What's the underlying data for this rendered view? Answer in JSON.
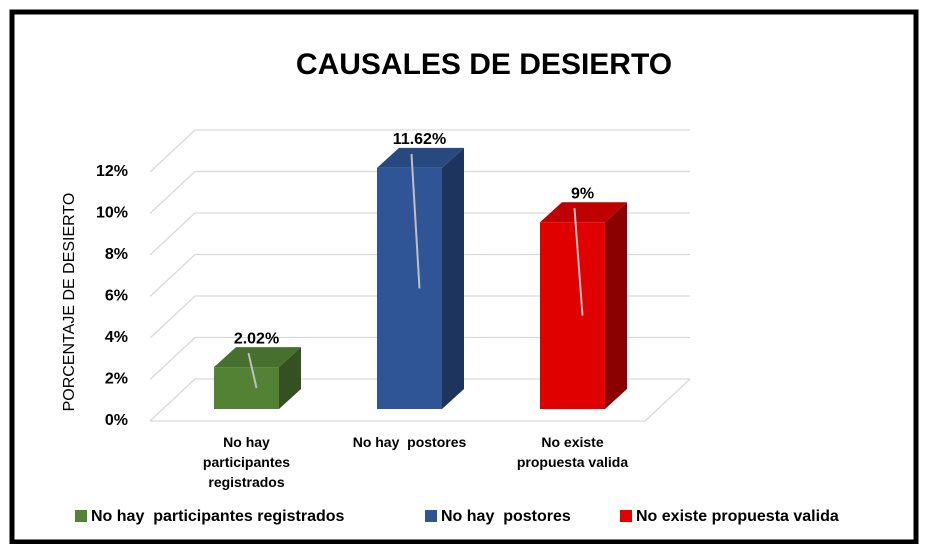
{
  "chart_data": {
    "type": "bar3d",
    "title": "CAUSALES DE DESIERTO",
    "y_label": "PORCENTAJE DE DESIERTO",
    "categories": [
      "No hay participantes registrados",
      "No hay  postores",
      "No existe propuesta valida"
    ],
    "series": [
      {
        "name": "No hay  participantes registrados",
        "color": "#548235",
        "values": [
          2.02,
          null,
          null
        ],
        "value_labels": [
          "2.02%",
          null,
          null
        ]
      },
      {
        "name": "No hay  postores",
        "color": "#2f5597",
        "values": [
          null,
          11.62,
          null
        ],
        "value_labels": [
          null,
          "11.62%",
          null
        ]
      },
      {
        "name": "No existe propuesta valida",
        "color": "#e00000",
        "values": [
          null,
          null,
          9
        ],
        "value_labels": [
          null,
          null,
          "9%"
        ]
      }
    ],
    "ylim": [
      0,
      12
    ],
    "yticks": [
      {
        "value": 0,
        "label": "0%"
      },
      {
        "value": 2,
        "label": "2%"
      },
      {
        "value": 4,
        "label": "4%"
      },
      {
        "value": 6,
        "label": "6%"
      },
      {
        "value": 8,
        "label": "8%"
      },
      {
        "value": 10,
        "label": "10%"
      },
      {
        "value": 12,
        "label": "12%"
      }
    ],
    "grid": true,
    "legend": "bottom"
  }
}
